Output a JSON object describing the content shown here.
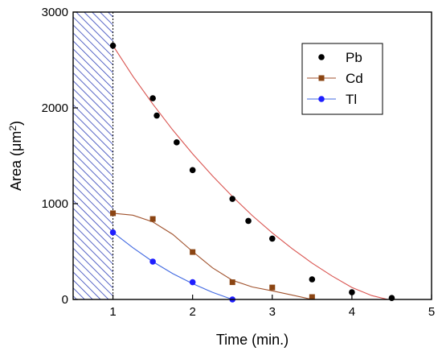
{
  "chart_data": {
    "type": "scatter",
    "xlabel": "Time (min.)",
    "ylabel_main": "Area (",
    "ylabel_unit": "μm",
    "ylabel_sup": "2",
    "ylabel_close": ")",
    "xlim": [
      0.5,
      5
    ],
    "ylim": [
      0,
      3000
    ],
    "xticks": [
      1,
      2,
      3,
      4,
      5
    ],
    "yticks": [
      0,
      1000,
      2000,
      3000
    ],
    "hatched_region": [
      0.5,
      1
    ],
    "legend_position": "top-right",
    "series": [
      {
        "name": "Pb",
        "color": "#000000",
        "line_color": "#d9534f",
        "marker": "circle",
        "show_line_in_legend": false,
        "x": [
          1.0,
          1.5,
          1.55,
          1.8,
          2.0,
          2.5,
          2.7,
          3.0,
          3.5,
          4.0,
          4.5
        ],
        "y": [
          2650,
          2100,
          1920,
          1640,
          1350,
          1050,
          820,
          635,
          210,
          75,
          15
        ],
        "fit": {
          "x": [
            1.0,
            1.25,
            1.5,
            1.75,
            2.0,
            2.25,
            2.5,
            2.75,
            3.0,
            3.25,
            3.5,
            3.75,
            4.0,
            4.25,
            4.45
          ],
          "y": [
            2650,
            2330,
            2040,
            1770,
            1520,
            1290,
            1075,
            875,
            695,
            530,
            380,
            245,
            125,
            40,
            0
          ]
        }
      },
      {
        "name": "Cd",
        "color": "#8b4513",
        "line_color": "#a0522d",
        "marker": "square",
        "show_line_in_legend": true,
        "x": [
          1.0,
          1.5,
          2.0,
          2.5,
          3.0,
          3.5
        ],
        "y": [
          900,
          840,
          495,
          180,
          125,
          25
        ],
        "fit": {
          "x": [
            1.0,
            1.25,
            1.5,
            1.75,
            2.0,
            2.25,
            2.5,
            2.75,
            3.0,
            3.25,
            3.5
          ],
          "y": [
            900,
            880,
            810,
            680,
            500,
            330,
            200,
            130,
            90,
            45,
            0
          ]
        }
      },
      {
        "name": "Tl",
        "color": "#1e1eff",
        "line_color": "#4169e1",
        "marker": "circle",
        "show_line_in_legend": true,
        "x": [
          1.0,
          1.5,
          2.0,
          2.5
        ],
        "y": [
          700,
          395,
          180,
          0
        ],
        "fit": {
          "x": [
            1.0,
            1.25,
            1.5,
            1.75,
            2.0,
            2.25,
            2.5
          ],
          "y": [
            700,
            540,
            395,
            270,
            165,
            75,
            0
          ]
        }
      }
    ]
  }
}
